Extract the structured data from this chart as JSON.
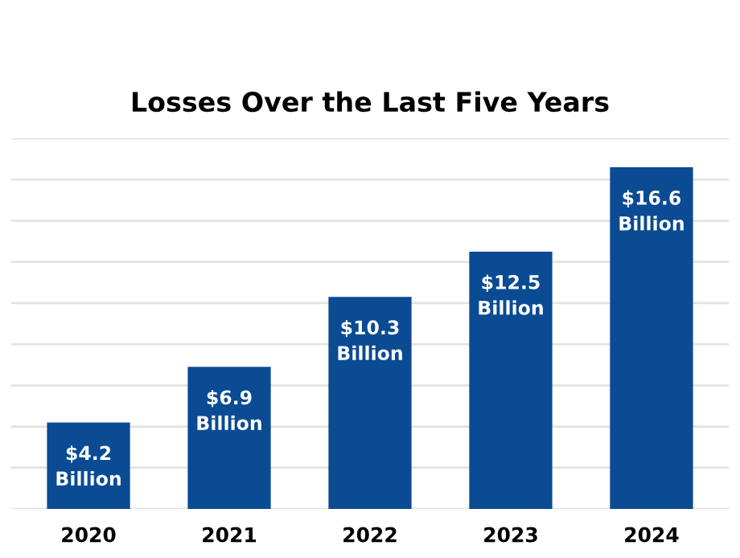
{
  "chart_data": {
    "type": "bar",
    "title": "Losses Over the Last Five Years",
    "categories": [
      "2020",
      "2021",
      "2022",
      "2023",
      "2024"
    ],
    "values": [
      4.2,
      6.9,
      10.3,
      12.5,
      16.6
    ],
    "value_labels": [
      "$4.2\nBillion",
      "$6.9\nBillion",
      "$10.3\nBillion",
      "$12.5\nBillion",
      "$16.6\nBillion"
    ],
    "color": "#0a4b94",
    "ylim": [
      0,
      18
    ],
    "yticks": [
      {
        "value": 0,
        "label": null
      },
      {
        "value": 2,
        "label": null
      },
      {
        "value": 4,
        "label": null
      },
      {
        "value": 6,
        "label": null
      },
      {
        "value": 8,
        "label": null
      },
      {
        "value": 10,
        "label": null
      },
      {
        "value": 12,
        "label": null
      },
      {
        "value": 14,
        "label": null
      },
      {
        "value": 16,
        "label": null
      },
      {
        "value": 18,
        "label": null
      }
    ],
    "grid": "y",
    "tick_labels": "x",
    "legend": false
  }
}
